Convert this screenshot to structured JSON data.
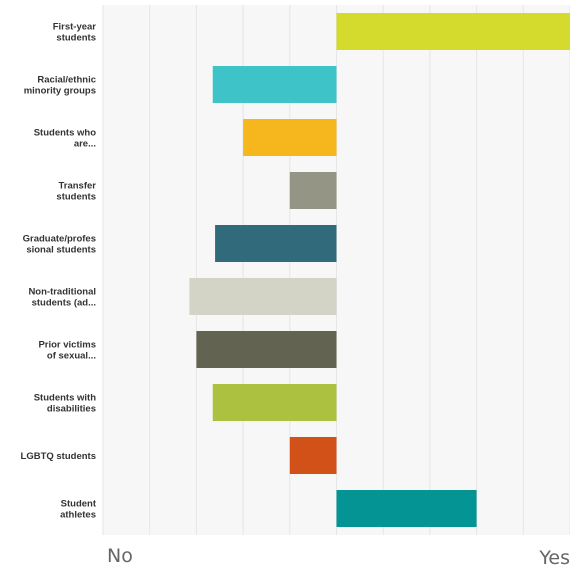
{
  "chart_data": {
    "type": "bar",
    "orientation": "horizontal",
    "categories": [
      [
        "First-year",
        "students"
      ],
      [
        "Racial/ethnic",
        "minority groups"
      ],
      [
        "Students who",
        "are..."
      ],
      [
        "Transfer",
        "students"
      ],
      [
        "Graduate/profes",
        "sional students"
      ],
      [
        "Non-traditional",
        "students (ad..."
      ],
      [
        "Prior victims",
        "of sexual..."
      ],
      [
        "Students with",
        "disabilities"
      ],
      [
        "LGBTQ students"
      ],
      [
        "Student",
        "athletes"
      ]
    ],
    "values": [
      50,
      -26.5,
      -20,
      -10,
      -26,
      -31.5,
      -30,
      -26.5,
      -10,
      30
    ],
    "colors": [
      "#d4db2c",
      "#3ec3c8",
      "#f6b61e",
      "#959585",
      "#316a7b",
      "#d3d4c6",
      "#636352",
      "#acc13f",
      "#d25118",
      "#049493"
    ],
    "xlim": [
      -50,
      50
    ],
    "x_ticks": [
      -50,
      -40,
      -30,
      -20,
      -10,
      0,
      10,
      20,
      30,
      40,
      50
    ],
    "x_start_label": "No",
    "x_end_label": "Yes",
    "grid": true
  }
}
